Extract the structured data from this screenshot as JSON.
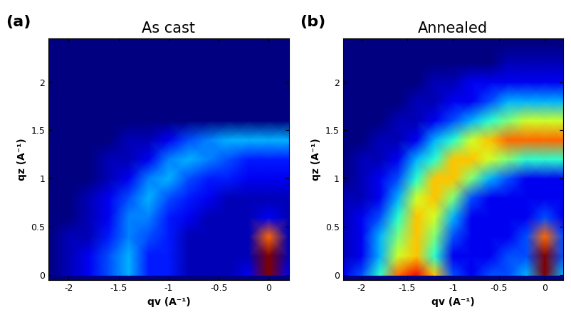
{
  "chart_data": [
    {
      "type": "heatmap",
      "title": "As cast",
      "annotation": "(a)",
      "x_label": "qv (A⁻¹)",
      "y_label": "qz (A⁻¹)",
      "xlim": [
        -2.2,
        0.2
      ],
      "ylim": [
        -0.05,
        2.45
      ],
      "xticks": [
        -2,
        -1.5,
        -1,
        -0.5,
        0
      ],
      "yticks": [
        0,
        0.5,
        1,
        1.5,
        2
      ],
      "x": [
        -2.2,
        -2.0,
        -1.8,
        -1.6,
        -1.4,
        -1.2,
        -1.0,
        -0.8,
        -0.6,
        -0.4,
        -0.2,
        0,
        0.2
      ],
      "y": [
        0,
        0.2,
        0.4,
        0.6,
        0.8,
        1.0,
        1.2,
        1.4,
        1.6,
        1.8,
        2.0,
        2.2,
        2.4
      ],
      "values": [
        [
          0,
          0.5,
          1,
          2,
          3,
          1.5,
          1.5,
          0.5,
          0.5,
          0.5,
          1,
          10,
          1
        ],
        [
          0,
          0.5,
          1,
          2,
          3,
          1.5,
          1.5,
          0.5,
          0.5,
          0.5,
          0.5,
          10,
          0.5
        ],
        [
          0,
          0.5,
          0.5,
          1.5,
          2.5,
          2,
          1.5,
          0.5,
          0.5,
          0.5,
          0.5,
          8,
          0.5
        ],
        [
          0,
          0,
          0.5,
          1,
          2.5,
          2.5,
          1.5,
          1,
          0.5,
          0.5,
          0.5,
          1,
          0.5
        ],
        [
          0,
          0,
          0.5,
          1,
          2,
          3,
          2,
          1.5,
          1,
          0.5,
          0.5,
          0.5,
          0.5
        ],
        [
          0,
          0,
          0,
          0.5,
          1,
          2.5,
          3,
          2,
          1.5,
          1.5,
          1,
          1,
          1
        ],
        [
          0,
          0,
          0,
          0.5,
          0.5,
          1,
          2.5,
          3,
          2.5,
          2,
          1.5,
          1.5,
          1.5
        ],
        [
          0,
          0,
          0,
          0,
          0.5,
          0.5,
          1,
          2,
          2.5,
          3,
          3,
          3,
          3
        ],
        [
          0,
          0,
          0,
          0,
          0,
          0,
          0,
          0,
          0,
          0,
          0,
          0,
          0
        ],
        [
          0,
          0,
          0,
          0,
          0,
          0,
          0,
          0,
          0,
          0,
          0,
          0,
          0
        ],
        [
          0,
          0,
          0,
          0,
          0,
          0,
          0,
          0,
          0,
          0,
          0,
          0,
          0
        ],
        [
          0,
          0,
          0,
          0,
          0,
          0,
          0,
          0,
          0,
          0,
          0,
          0,
          0
        ],
        [
          0,
          0,
          0,
          0,
          0,
          0,
          0,
          0,
          0,
          0,
          0,
          0,
          0
        ]
      ]
    },
    {
      "type": "heatmap",
      "title": "Annealed",
      "annotation": "(b)",
      "x_label": "qv (A⁻¹)",
      "y_label": "qz (A⁻¹)",
      "xlim": [
        -2.2,
        0.2
      ],
      "ylim": [
        -0.05,
        2.45
      ],
      "xticks": [
        -2,
        -1.5,
        -1,
        -0.5,
        0
      ],
      "yticks": [
        0,
        0.5,
        1,
        1.5,
        2
      ],
      "x": [
        -2.2,
        -2.0,
        -1.8,
        -1.6,
        -1.4,
        -1.2,
        -1.0,
        -0.8,
        -0.6,
        -0.4,
        -0.2,
        0,
        0.2
      ],
      "y": [
        0,
        0.2,
        0.4,
        0.6,
        0.8,
        1.0,
        1.2,
        1.4,
        1.6,
        1.8,
        2.0,
        2.2,
        2.4
      ],
      "values": [
        [
          1,
          2,
          4,
          8,
          9,
          7,
          2,
          1,
          2,
          2,
          3,
          10,
          3
        ],
        [
          0.5,
          1,
          3,
          6,
          7,
          4,
          1,
          1,
          1,
          2,
          2,
          10,
          2
        ],
        [
          0.5,
          1,
          3,
          5,
          7,
          5,
          2,
          1,
          1,
          1,
          2,
          8,
          2
        ],
        [
          0.5,
          1,
          2,
          4,
          7,
          6,
          3,
          1,
          1,
          1,
          1,
          2,
          1
        ],
        [
          0.5,
          0.5,
          1,
          3,
          6,
          7,
          5,
          2,
          1,
          1,
          1,
          1,
          1
        ],
        [
          0,
          0.5,
          1,
          2,
          4,
          7,
          7,
          5,
          3,
          2,
          1,
          1,
          1
        ],
        [
          0,
          0.5,
          0.5,
          1,
          3,
          4,
          7,
          7,
          6,
          5,
          4,
          4,
          4
        ],
        [
          0,
          0,
          0.5,
          0.5,
          1,
          3,
          4,
          6,
          7,
          8,
          8,
          8,
          8
        ],
        [
          0,
          0,
          0,
          0.5,
          0.5,
          1,
          2,
          3,
          4,
          5,
          6,
          6,
          6
        ],
        [
          0,
          0,
          0,
          0,
          0.5,
          0.5,
          1,
          1,
          2,
          3,
          3,
          3,
          3
        ],
        [
          0,
          0,
          0,
          0,
          0,
          0.5,
          0.5,
          1,
          1,
          1,
          1,
          1,
          1
        ],
        [
          0,
          0,
          0,
          0,
          0,
          0,
          0,
          0,
          0,
          0.5,
          0.5,
          0.5,
          0.5
        ],
        [
          0,
          0,
          0,
          0,
          0,
          0,
          0,
          0,
          0,
          0,
          0,
          0,
          0
        ]
      ]
    }
  ]
}
